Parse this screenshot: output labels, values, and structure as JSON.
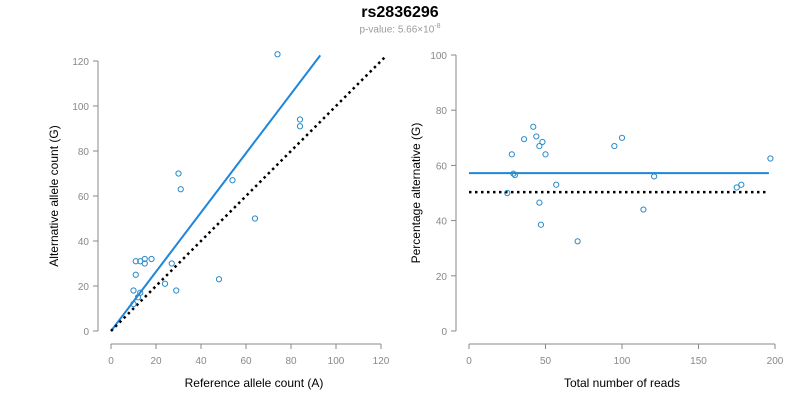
{
  "title": "rs2836296",
  "subtitle": {
    "prefix": "p-value: 5.66×10",
    "exponent": "-8"
  },
  "colors": {
    "points": "#2a8ac8",
    "fit": "#1f86d9",
    "reference": "#000000",
    "axis": "#888888"
  },
  "chart_data": [
    {
      "type": "scatter",
      "xlabel": "Reference allele count (A)",
      "ylabel": "Alternative allele count (G)",
      "xlim": [
        0,
        120
      ],
      "ylim": [
        0,
        120
      ],
      "xticks": [
        0,
        20,
        40,
        60,
        80,
        100,
        120
      ],
      "yticks": [
        0,
        20,
        40,
        60,
        80,
        100,
        120
      ],
      "points": [
        {
          "x": 10,
          "y": 12
        },
        {
          "x": 10,
          "y": 18
        },
        {
          "x": 11,
          "y": 31
        },
        {
          "x": 11,
          "y": 25
        },
        {
          "x": 12,
          "y": 15
        },
        {
          "x": 13,
          "y": 17
        },
        {
          "x": 13,
          "y": 31
        },
        {
          "x": 15,
          "y": 30
        },
        {
          "x": 15,
          "y": 32
        },
        {
          "x": 18,
          "y": 32
        },
        {
          "x": 24,
          "y": 21
        },
        {
          "x": 27,
          "y": 30
        },
        {
          "x": 29,
          "y": 18
        },
        {
          "x": 30,
          "y": 70
        },
        {
          "x": 31,
          "y": 63
        },
        {
          "x": 48,
          "y": 23
        },
        {
          "x": 54,
          "y": 67
        },
        {
          "x": 64,
          "y": 50
        },
        {
          "x": 74,
          "y": 123
        },
        {
          "x": 84,
          "y": 94
        },
        {
          "x": 84,
          "y": 91
        }
      ],
      "lines": [
        {
          "name": "fitted",
          "style": "solid",
          "x": [
            0,
            93
          ],
          "y": [
            0,
            122.5
          ]
        },
        {
          "name": "expected",
          "style": "dotted",
          "x": [
            0,
            122
          ],
          "y": [
            0,
            122
          ]
        }
      ]
    },
    {
      "type": "scatter",
      "xlabel": "Total number of reads",
      "ylabel": "Percentage alternative (G)",
      "xlim": [
        0,
        200
      ],
      "ylim": [
        0,
        100
      ],
      "xticks": [
        0,
        50,
        100,
        150,
        200
      ],
      "yticks": [
        0,
        20,
        40,
        60,
        80,
        100
      ],
      "points": [
        {
          "x": 25,
          "y": 50
        },
        {
          "x": 28,
          "y": 64
        },
        {
          "x": 29,
          "y": 57
        },
        {
          "x": 30,
          "y": 56.5
        },
        {
          "x": 36,
          "y": 69.5
        },
        {
          "x": 42,
          "y": 74
        },
        {
          "x": 44,
          "y": 70.5
        },
        {
          "x": 46,
          "y": 67
        },
        {
          "x": 46,
          "y": 46.5
        },
        {
          "x": 47,
          "y": 38.5
        },
        {
          "x": 48,
          "y": 68.5
        },
        {
          "x": 50,
          "y": 64
        },
        {
          "x": 57,
          "y": 53
        },
        {
          "x": 71,
          "y": 32.5
        },
        {
          "x": 95,
          "y": 67
        },
        {
          "x": 100,
          "y": 70
        },
        {
          "x": 114,
          "y": 44
        },
        {
          "x": 121,
          "y": 56
        },
        {
          "x": 175,
          "y": 52
        },
        {
          "x": 178,
          "y": 53
        },
        {
          "x": 197,
          "y": 62.5
        }
      ],
      "lines": [
        {
          "name": "mean",
          "style": "solid",
          "x": [
            0,
            196
          ],
          "y": [
            57.2,
            57.2
          ]
        },
        {
          "name": "expected",
          "style": "dotted",
          "x": [
            0,
            196
          ],
          "y": [
            50.3,
            50.3
          ]
        }
      ]
    }
  ]
}
